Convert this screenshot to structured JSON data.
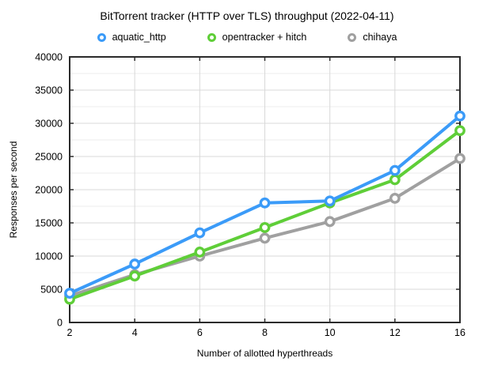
{
  "title": "BitTorrent tracker (HTTP over TLS) throughput (2022-04-11)",
  "legend": [
    {
      "label": "aquatic_http",
      "color": "#3B9BF8"
    },
    {
      "label": "opentracker + hitch",
      "color": "#5FCE38"
    },
    {
      "label": "chihaya",
      "color": "#A0A0A0"
    }
  ],
  "axes": {
    "xlabel": "Number of allotted hyperthreads",
    "ylabel": "Responses per second"
  },
  "colors": {
    "axis_border": "#2b2b2b",
    "grid_major": "#d9d9d9",
    "grid_minor": "#ececec",
    "marker_fill": "#ffffff"
  },
  "chart_data": {
    "type": "line",
    "title": "BitTorrent tracker (HTTP over TLS) throughput (2022-04-11)",
    "xlabel": "Number of allotted hyperthreads",
    "ylabel": "Responses per second",
    "categories": [
      "2",
      "4",
      "6",
      "8",
      "10",
      "12",
      "16"
    ],
    "series": [
      {
        "name": "aquatic_http",
        "color": "#3B9BF8",
        "values": [
          4400,
          8800,
          13500,
          18000,
          18300,
          22900,
          31100
        ]
      },
      {
        "name": "opentracker + hitch",
        "color": "#5FCE38",
        "values": [
          3500,
          7000,
          10600,
          14300,
          18000,
          21500,
          28900
        ]
      },
      {
        "name": "chihaya",
        "color": "#A0A0A0",
        "values": [
          4000,
          7200,
          10000,
          12700,
          15200,
          18700,
          24700
        ]
      }
    ],
    "ylim": [
      0,
      40000
    ],
    "ytick_step": 5000,
    "yminor_step": 2500,
    "yticks": [
      0,
      5000,
      10000,
      15000,
      20000,
      25000,
      30000,
      35000,
      40000
    ],
    "grid": true,
    "legend_position": "top"
  }
}
